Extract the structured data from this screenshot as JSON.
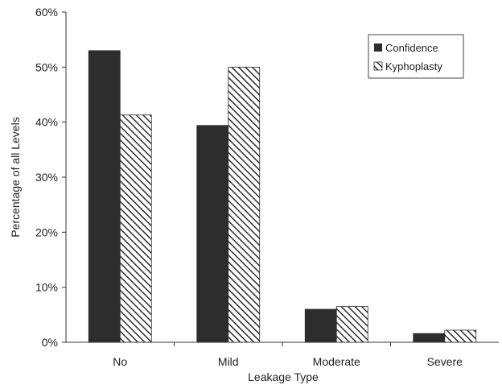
{
  "chart_data": {
    "type": "bar",
    "title": "",
    "xlabel": "Leakage Type",
    "ylabel": "Percentage of all Levels",
    "categories": [
      "No",
      "Mild",
      "Moderate",
      "Severe"
    ],
    "series": [
      {
        "name": "Confidence",
        "values": [
          53,
          39.4,
          6,
          1.6
        ],
        "color": "#2d2d2d",
        "pattern": "solid"
      },
      {
        "name": "Kyphoplasty",
        "values": [
          41.3,
          50,
          6.5,
          2.2
        ],
        "color": "#2d2d2d",
        "pattern": "diagonal-hatch"
      }
    ],
    "ylim": [
      0,
      60
    ],
    "yticks": [
      "0%",
      "10%",
      "20%",
      "30%",
      "40%",
      "50%",
      "60%"
    ],
    "grid": false,
    "legend_position": "top-right"
  }
}
